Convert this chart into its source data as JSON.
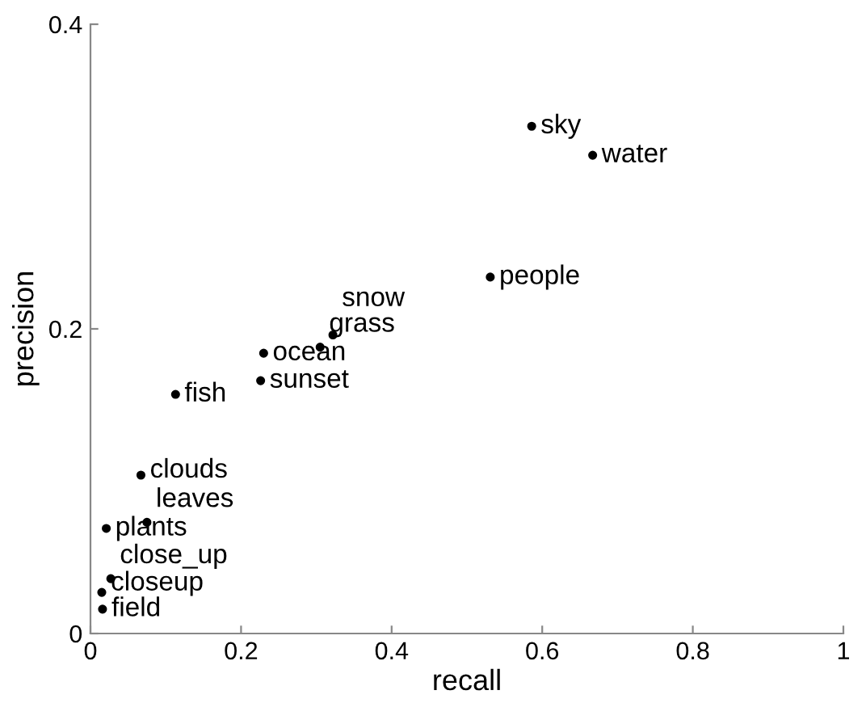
{
  "chart_data": {
    "type": "scatter",
    "xlabel": "recall",
    "ylabel": "precision",
    "x": [
      0.586,
      0.667,
      0.531,
      0.322,
      0.305,
      0.23,
      0.226,
      0.113,
      0.067,
      0.075,
      0.021,
      0.027,
      0.015,
      0.016
    ],
    "values": [
      0.333,
      0.314,
      0.234,
      0.196,
      0.188,
      0.184,
      0.166,
      0.157,
      0.104,
      0.073,
      0.069,
      0.036,
      0.027,
      0.016
    ],
    "value_labels": [
      "sky",
      "water",
      "people",
      "snow",
      "grass",
      "ocean",
      "sunset",
      "fish",
      "clouds",
      "leaves",
      "plants",
      "close_up",
      "closeup",
      "field"
    ],
    "color": "#000000",
    "marker": "circle",
    "grid": false,
    "legend": false,
    "xlim": [
      0,
      1
    ],
    "xticks": [
      0,
      0.2,
      0.4,
      0.6,
      0.8,
      1
    ],
    "ylim": [
      0,
      0.4
    ],
    "yticks": [
      0,
      0.2,
      0.4
    ]
  }
}
